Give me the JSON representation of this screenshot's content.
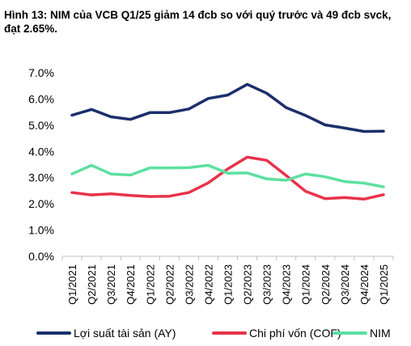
{
  "chart_data": {
    "type": "line",
    "title": "Hình 13: NIM của VCB Q1/25 giảm 14 đcb so với quý trước và 49 đcb svck, đạt 2.65%.",
    "xlabel": "",
    "ylabel": "",
    "categories": [
      "Q1/2021",
      "Q2/2021",
      "Q3/2021",
      "Q4/2021",
      "Q1/2022",
      "Q2/2022",
      "Q3/2022",
      "Q4/2022",
      "Q1/2023",
      "Q2/2023",
      "Q3/2023",
      "Q4/2023",
      "Q1/2024",
      "Q2/2024",
      "Q3/2024",
      "Q4/2024",
      "Q1/2025"
    ],
    "y_ticks": [
      "0.0%",
      "1.0%",
      "2.0%",
      "3.0%",
      "4.0%",
      "5.0%",
      "6.0%",
      "7.0%"
    ],
    "ylim": [
      0,
      7
    ],
    "grid": false,
    "legend_position": "bottom",
    "series": [
      {
        "name": "Lợi suất tài sản (AY)",
        "color": "#1b2f6b",
        "values": [
          5.38,
          5.6,
          5.32,
          5.22,
          5.48,
          5.48,
          5.62,
          6.02,
          6.15,
          6.56,
          6.22,
          5.67,
          5.37,
          5.01,
          4.89,
          4.76,
          4.77
        ]
      },
      {
        "name": "Chi phí vốn (COF)",
        "color": "#e8334a",
        "values": [
          2.43,
          2.34,
          2.38,
          2.32,
          2.28,
          2.29,
          2.43,
          2.8,
          3.33,
          3.78,
          3.66,
          3.08,
          2.48,
          2.2,
          2.24,
          2.18,
          2.35
        ]
      },
      {
        "name": "NIM",
        "color": "#5de0a0",
        "values": [
          3.14,
          3.47,
          3.14,
          3.1,
          3.37,
          3.37,
          3.38,
          3.47,
          3.17,
          3.18,
          2.95,
          2.9,
          3.14,
          3.03,
          2.85,
          2.79,
          2.65
        ]
      }
    ]
  }
}
